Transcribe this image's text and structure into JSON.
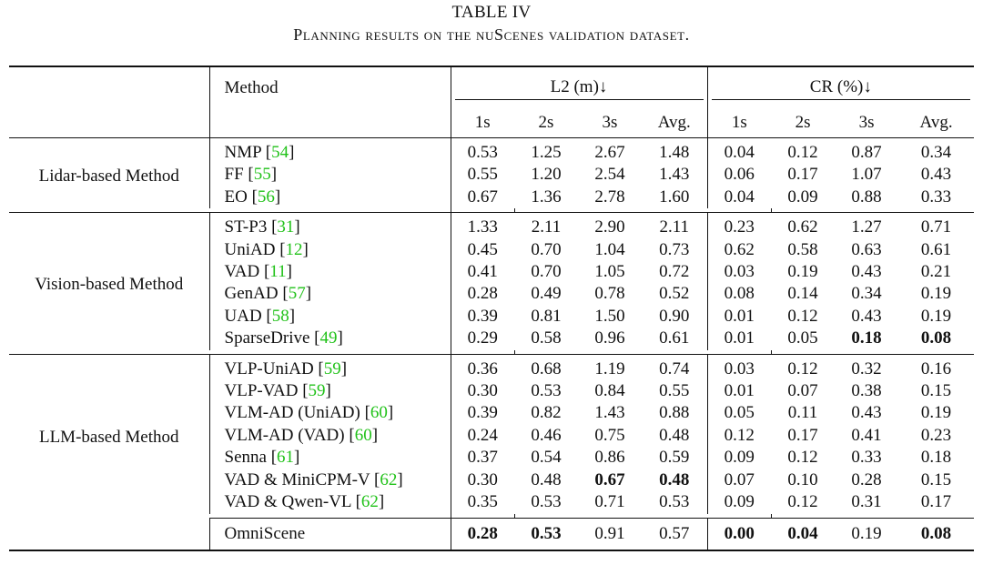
{
  "caption": {
    "title": "TABLE IV",
    "subtitle": "Planning results on the nuScenes validation dataset."
  },
  "headers": {
    "method": "Method",
    "l2": "L2 (m)↓",
    "cr": "CR (%)↓",
    "sub": [
      "1s",
      "2s",
      "3s",
      "Avg.",
      "1s",
      "2s",
      "3s",
      "Avg."
    ]
  },
  "groups": [
    {
      "label": "Lidar-based Method",
      "rows": [
        {
          "method": "NMP",
          "cite": "54",
          "values": [
            "0.53",
            "1.25",
            "2.67",
            "1.48",
            "0.04",
            "0.12",
            "0.87",
            "0.34"
          ],
          "bold": []
        },
        {
          "method": "FF",
          "cite": "55",
          "values": [
            "0.55",
            "1.20",
            "2.54",
            "1.43",
            "0.06",
            "0.17",
            "1.07",
            "0.43"
          ],
          "bold": []
        },
        {
          "method": "EO",
          "cite": "56",
          "values": [
            "0.67",
            "1.36",
            "2.78",
            "1.60",
            "0.04",
            "0.09",
            "0.88",
            "0.33"
          ],
          "bold": []
        }
      ]
    },
    {
      "label": "Vision-based Method",
      "rows": [
        {
          "method": "ST-P3",
          "cite": "31",
          "values": [
            "1.33",
            "2.11",
            "2.90",
            "2.11",
            "0.23",
            "0.62",
            "1.27",
            "0.71"
          ],
          "bold": []
        },
        {
          "method": "UniAD",
          "cite": "12",
          "values": [
            "0.45",
            "0.70",
            "1.04",
            "0.73",
            "0.62",
            "0.58",
            "0.63",
            "0.61"
          ],
          "bold": []
        },
        {
          "method": "VAD",
          "cite": "11",
          "values": [
            "0.41",
            "0.70",
            "1.05",
            "0.72",
            "0.03",
            "0.19",
            "0.43",
            "0.21"
          ],
          "bold": []
        },
        {
          "method": "GenAD",
          "cite": "57",
          "values": [
            "0.28",
            "0.49",
            "0.78",
            "0.52",
            "0.08",
            "0.14",
            "0.34",
            "0.19"
          ],
          "bold": []
        },
        {
          "method": "UAD",
          "cite": "58",
          "values": [
            "0.39",
            "0.81",
            "1.50",
            "0.90",
            "0.01",
            "0.12",
            "0.43",
            "0.19"
          ],
          "bold": []
        },
        {
          "method": "SparseDrive",
          "cite": "49",
          "values": [
            "0.29",
            "0.58",
            "0.96",
            "0.61",
            "0.01",
            "0.05",
            "0.18",
            "0.08"
          ],
          "bold": [
            6,
            7
          ]
        }
      ]
    },
    {
      "label": "LLM-based Method",
      "rows": [
        {
          "method": "VLP-UniAD",
          "cite": "59",
          "values": [
            "0.36",
            "0.68",
            "1.19",
            "0.74",
            "0.03",
            "0.12",
            "0.32",
            "0.16"
          ],
          "bold": []
        },
        {
          "method": "VLP-VAD",
          "cite": "59",
          "values": [
            "0.30",
            "0.53",
            "0.84",
            "0.55",
            "0.01",
            "0.07",
            "0.38",
            "0.15"
          ],
          "bold": []
        },
        {
          "method": "VLM-AD (UniAD)",
          "cite": "60",
          "values": [
            "0.39",
            "0.82",
            "1.43",
            "0.88",
            "0.05",
            "0.11",
            "0.43",
            "0.19"
          ],
          "bold": []
        },
        {
          "method": "VLM-AD (VAD)",
          "cite": "60",
          "values": [
            "0.24",
            "0.46",
            "0.75",
            "0.48",
            "0.12",
            "0.17",
            "0.41",
            "0.23"
          ],
          "bold": []
        },
        {
          "method": "Senna",
          "cite": "61",
          "values": [
            "0.37",
            "0.54",
            "0.86",
            "0.59",
            "0.09",
            "0.12",
            "0.33",
            "0.18"
          ],
          "bold": []
        },
        {
          "method": "VAD & MiniCPM-V",
          "cite": "62",
          "values": [
            "0.30",
            "0.48",
            "0.67",
            "0.48",
            "0.07",
            "0.10",
            "0.28",
            "0.15"
          ],
          "bold": [
            2,
            3
          ]
        },
        {
          "method": "VAD & Qwen-VL",
          "cite": "62",
          "values": [
            "0.35",
            "0.53",
            "0.71",
            "0.53",
            "0.09",
            "0.12",
            "0.31",
            "0.17"
          ],
          "bold": []
        }
      ]
    }
  ],
  "final_row": {
    "method": "OmniScene",
    "cite": "",
    "values": [
      "0.28",
      "0.53",
      "0.91",
      "0.57",
      "0.00",
      "0.04",
      "0.19",
      "0.08"
    ],
    "bold": [
      0,
      1,
      4,
      5,
      7
    ]
  }
}
